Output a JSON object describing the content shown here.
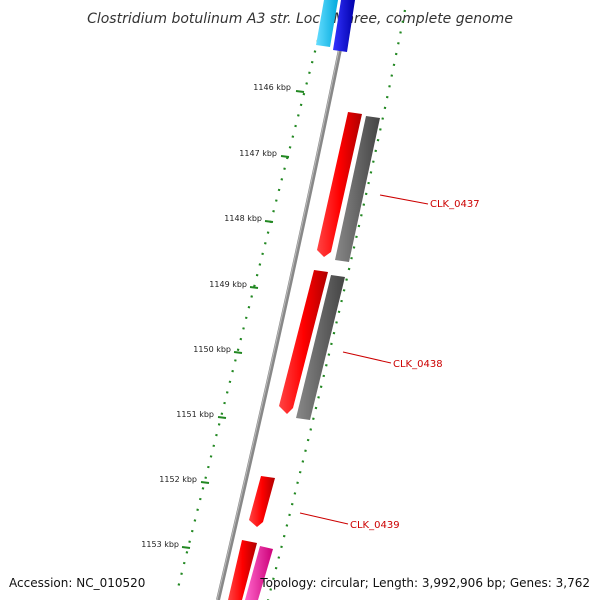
{
  "title": "Clostridium botulinum A3 str. Loch Maree, complete genome",
  "ticks": [
    "1146 kbp",
    "1147 kbp",
    "1148 kbp",
    "1149 kbp",
    "1150 kbp",
    "1151 kbp",
    "1152 kbp",
    "1153 kbp"
  ],
  "genes": [
    "CLK_0437",
    "CLK_0438",
    "CLK_0439"
  ],
  "footer": {
    "accession": "Accession: NC_010520",
    "summary": "Topology: circular; Length: 3,992,906 bp; Genes: 3,762"
  },
  "colors": {
    "backbone": "#888888",
    "cds": "#ff0000",
    "gene": "#666666",
    "cyan_feature": "#22ccff",
    "blue_feature": "#0000ee",
    "pink_feature": "#ff33aa",
    "dots": "#228822",
    "label": "#cc0000"
  }
}
